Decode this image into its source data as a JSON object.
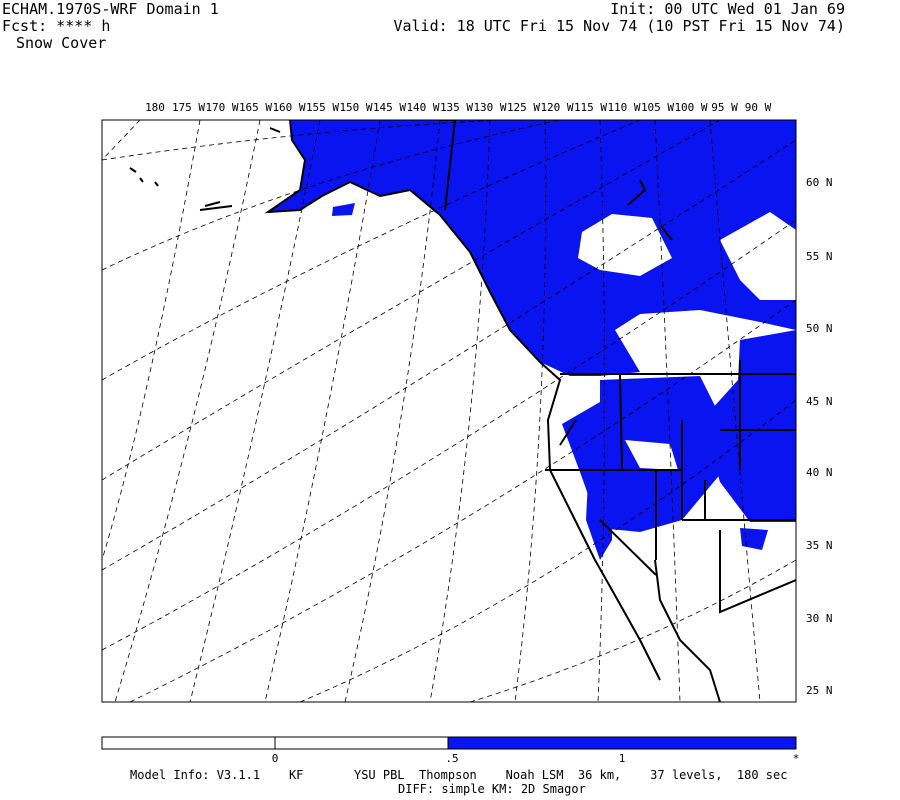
{
  "header": {
    "left": [
      "ECHAM.1970S-WRF Domain 1",
      "Fcst: **** h",
      "Snow Cover"
    ],
    "init": "Init: 00 UTC Wed 01 Jan 69",
    "valid": "Valid: 18 UTC Fri 15 Nov 74 (10 PST Fri 15 Nov 74)"
  },
  "map": {
    "lon_labels": [
      "180",
      "175 W",
      "170 W",
      "165 W",
      "160 W",
      "155 W",
      "150 W",
      "145 W",
      "140 W",
      "135 W",
      "130 W",
      "125 W",
      "120 W",
      "115 W",
      "110 W",
      "105 W",
      "100 W",
      "95 W",
      "90 W"
    ],
    "lat_labels": [
      "60 N",
      "55 N",
      "50 N",
      "45 N",
      "40 N",
      "35 N",
      "30 N",
      "25 N"
    ]
  },
  "colorbar": {
    "labels": [
      "0",
      ".5",
      "1",
      "*"
    ]
  },
  "footer": {
    "model_info": "Model Info: V3.1.1    KF       YSU PBL  Thompson    Noah LSM  36 km,    37 levels,  180 sec",
    "diff": "DIFF: simple KM: 2D Smagor"
  }
}
